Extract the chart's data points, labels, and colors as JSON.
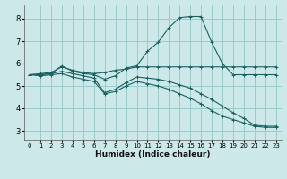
{
  "xlabel": "Humidex (Indice chaleur)",
  "bg_color": "#cce8e8",
  "grid_color": "#99cccc",
  "line_color": "#1a6060",
  "xlim": [
    -0.5,
    23.5
  ],
  "ylim": [
    2.6,
    8.6
  ],
  "xticks": [
    0,
    1,
    2,
    3,
    4,
    5,
    6,
    7,
    8,
    9,
    10,
    11,
    12,
    13,
    14,
    15,
    16,
    17,
    18,
    19,
    20,
    21,
    22,
    23
  ],
  "yticks": [
    3,
    4,
    5,
    6,
    7,
    8
  ],
  "series": [
    {
      "x": [
        0,
        1,
        2,
        3,
        4,
        5,
        6,
        7,
        8,
        9,
        10,
        11,
        12,
        13,
        14,
        15,
        16,
        17,
        18,
        19,
        20,
        21,
        22,
        23
      ],
      "y": [
        5.5,
        5.55,
        5.6,
        5.85,
        5.7,
        5.6,
        5.55,
        5.6,
        5.7,
        5.75,
        5.85,
        5.85,
        5.85,
        5.85,
        5.85,
        5.85,
        5.85,
        5.85,
        5.85,
        5.85,
        5.85,
        5.85,
        5.85,
        5.85
      ]
    },
    {
      "x": [
        0,
        1,
        2,
        3,
        4,
        5,
        6,
        7,
        8,
        9,
        10,
        11,
        12,
        13,
        14,
        15,
        16,
        17,
        18,
        19,
        20,
        21,
        22,
        23
      ],
      "y": [
        5.5,
        5.5,
        5.55,
        5.9,
        5.65,
        5.55,
        5.5,
        5.3,
        5.45,
        5.8,
        5.9,
        6.55,
        6.95,
        7.6,
        8.05,
        8.1,
        8.1,
        6.95,
        6.0,
        5.5,
        5.5,
        5.5,
        5.5,
        5.5
      ]
    },
    {
      "x": [
        0,
        1,
        2,
        3,
        4,
        5,
        6,
        7,
        8,
        9,
        10,
        11,
        12,
        13,
        14,
        15,
        16,
        17,
        18,
        19,
        20,
        21,
        22,
        23
      ],
      "y": [
        5.5,
        5.5,
        5.55,
        5.65,
        5.55,
        5.45,
        5.35,
        4.7,
        4.85,
        5.15,
        5.4,
        5.35,
        5.3,
        5.2,
        5.05,
        4.9,
        4.65,
        4.4,
        4.1,
        3.8,
        3.55,
        3.25,
        3.2,
        3.2
      ]
    },
    {
      "x": [
        0,
        1,
        2,
        3,
        4,
        5,
        6,
        7,
        8,
        9,
        10,
        11,
        12,
        13,
        14,
        15,
        16,
        17,
        18,
        19,
        20,
        21,
        22,
        23
      ],
      "y": [
        5.5,
        5.45,
        5.5,
        5.55,
        5.4,
        5.3,
        5.2,
        4.65,
        4.75,
        5.0,
        5.2,
        5.1,
        5.0,
        4.85,
        4.65,
        4.45,
        4.2,
        3.9,
        3.65,
        3.5,
        3.35,
        3.2,
        3.15,
        3.15
      ]
    }
  ]
}
